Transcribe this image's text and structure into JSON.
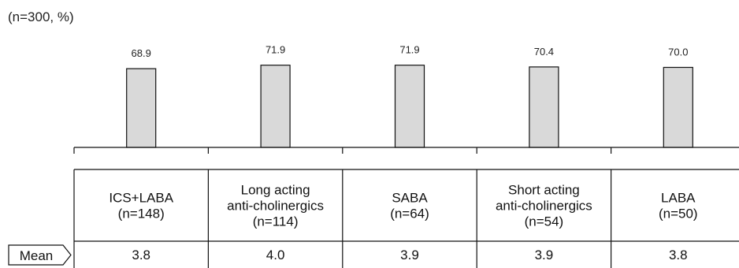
{
  "chart_data": {
    "type": "bar",
    "unit_note": "(n=300, %)",
    "categories": [
      {
        "lines": [
          "ICS+LABA",
          "(n=148)"
        ]
      },
      {
        "lines": [
          "Long acting",
          "anti-cholinergics",
          "(n=114)"
        ]
      },
      {
        "lines": [
          "SABA",
          "(n=64)"
        ]
      },
      {
        "lines": [
          "Short acting",
          "anti-cholinergics",
          "(n=54)"
        ]
      },
      {
        "lines": [
          "LABA",
          "(n=50)"
        ]
      }
    ],
    "values": [
      68.9,
      71.9,
      71.9,
      70.4,
      70.0
    ],
    "value_labels": [
      "68.9",
      "71.9",
      "71.9",
      "70.4",
      "70.0"
    ],
    "ylim": [
      0,
      100
    ],
    "mean_row": {
      "label": "Mean",
      "values": [
        "3.8",
        "4.0",
        "3.9",
        "3.9",
        "3.8"
      ]
    },
    "colors": {
      "bar_fill": "#d9d9d9",
      "bar_stroke": "#111111"
    }
  }
}
